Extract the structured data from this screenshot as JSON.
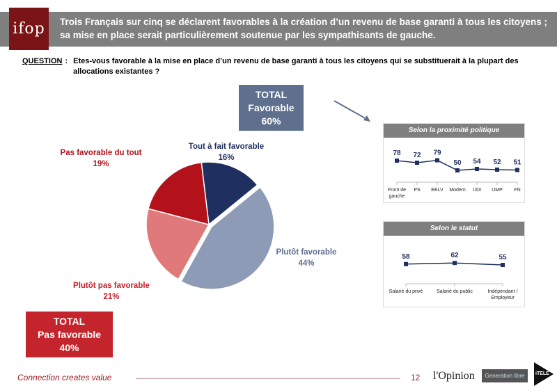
{
  "header": {
    "logo": "ifop",
    "title": "Trois Français sur cinq se déclarent favorables à la création d’un revenu de base garanti à tous les citoyens ; sa mise en place serait particulièrement soutenue par les sympathisants de gauche."
  },
  "question": {
    "label": "QUESTION",
    "colon": ":",
    "text": "Etes-vous favorable à la mise en place d’un revenu de base garanti à tous les citoyens qui se substituerait à la plupart des allocations existantes ?"
  },
  "totals": {
    "favorable": {
      "l1": "TOTAL",
      "l2": "Favorable",
      "l3": "60%"
    },
    "pas_favorable": {
      "l1": "TOTAL",
      "l2": "Pas favorable",
      "l3": "40%"
    }
  },
  "colors": {
    "navy": "#1f2f5f",
    "grey_blue": "#8d9bb6",
    "light_red": "#e07a7a",
    "red": "#b4121b",
    "line": "#1f2f5f"
  },
  "chart_data": [
    {
      "type": "pie",
      "slices": [
        {
          "label": "Tout à fait favorable",
          "value": 16,
          "display": "16%",
          "color": "#1f2f5f"
        },
        {
          "label": "Plutôt favorable",
          "value": 44,
          "display": "44%",
          "color": "#8d9bb6"
        },
        {
          "label": "Plutôt pas favorable",
          "value": 21,
          "display": "21%",
          "color": "#e07a7a"
        },
        {
          "label": "Pas favorable du tout",
          "value": 19,
          "display": "19%",
          "color": "#b4121b"
        }
      ]
    },
    {
      "type": "line",
      "title": "Selon la proximité politique",
      "categories": [
        "Front de gauche",
        "PS",
        "EELV",
        "Modem",
        "UDI",
        "UMP",
        "FN"
      ],
      "values": [
        78,
        72,
        79,
        50,
        54,
        52,
        51
      ]
    },
    {
      "type": "line",
      "title": "Selon le statut",
      "categories": [
        "Salarié du privé",
        "Salarié du public",
        "Indépendant / Employeur"
      ],
      "values": [
        58,
        62,
        55
      ]
    }
  ],
  "footer": {
    "tagline": "Connection creates value",
    "page": "12",
    "brand1": "l'Opinion",
    "brand2": "Generation libre",
    "brand3": "iTELE"
  }
}
